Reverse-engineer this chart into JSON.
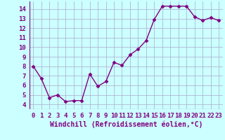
{
  "x": [
    0,
    1,
    2,
    3,
    4,
    5,
    6,
    7,
    8,
    9,
    10,
    11,
    12,
    13,
    14,
    15,
    16,
    17,
    18,
    19,
    20,
    21,
    22,
    23
  ],
  "y": [
    8.0,
    6.7,
    4.7,
    5.0,
    4.3,
    4.4,
    4.4,
    7.2,
    5.9,
    6.4,
    8.4,
    8.1,
    9.2,
    9.8,
    10.7,
    12.9,
    14.3,
    14.3,
    14.3,
    14.3,
    13.2,
    12.8,
    13.1,
    12.8
  ],
  "line_color": "#800080",
  "marker": "D",
  "marker_size": 2.5,
  "line_width": 1.0,
  "bg_color": "#ccffff",
  "grid_color": "#aaaacc",
  "xlabel": "Windchill (Refroidissement éolien,°C)",
  "xlabel_fontsize": 7,
  "ylabel_ticks": [
    4,
    5,
    6,
    7,
    8,
    9,
    10,
    11,
    12,
    13,
    14
  ],
  "ylim": [
    3.5,
    14.8
  ],
  "xlim": [
    -0.5,
    23.5
  ],
  "tick_fontsize": 6.5,
  "title": ""
}
